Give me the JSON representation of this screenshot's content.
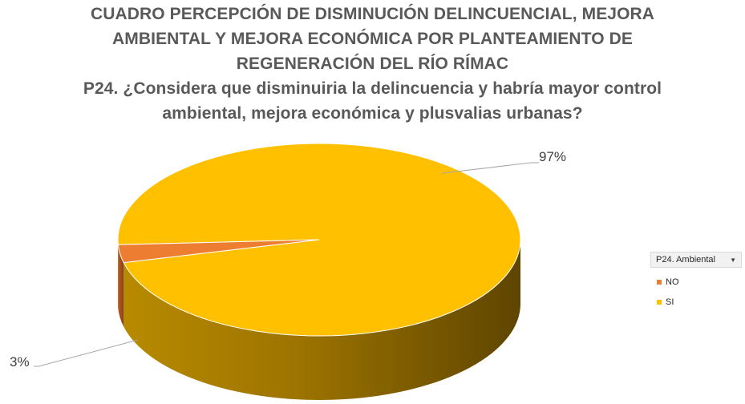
{
  "title": {
    "lines": [
      "CUADRO PERCEPCIÓN DE DISMINUCIÓN DELINCUENCIAL, MEJORA",
      "AMBIENTAL Y MEJORA ECONÓMICA POR PLANTEAMIENTO DE",
      "REGENERACIÓN DEL RÍO RÍMAC"
    ],
    "question_lines": [
      "P24. ¿Considera que disminuiria la delincuencia y habría mayor control",
      "ambiental, mejora económica y plusvalias urbanas?"
    ]
  },
  "legend": {
    "filter_label": "P24. Ambiental",
    "filter_arrow": "▼"
  },
  "chart_data": {
    "type": "pie",
    "style": "3d",
    "categories": [
      "NO",
      "SI"
    ],
    "values": [
      3,
      97
    ],
    "value_unit": "%",
    "data_labels": [
      "3%",
      "97%"
    ],
    "colors": {
      "NO": "#ed7d31",
      "SI": "#ffc000"
    },
    "legend_position": "right"
  }
}
